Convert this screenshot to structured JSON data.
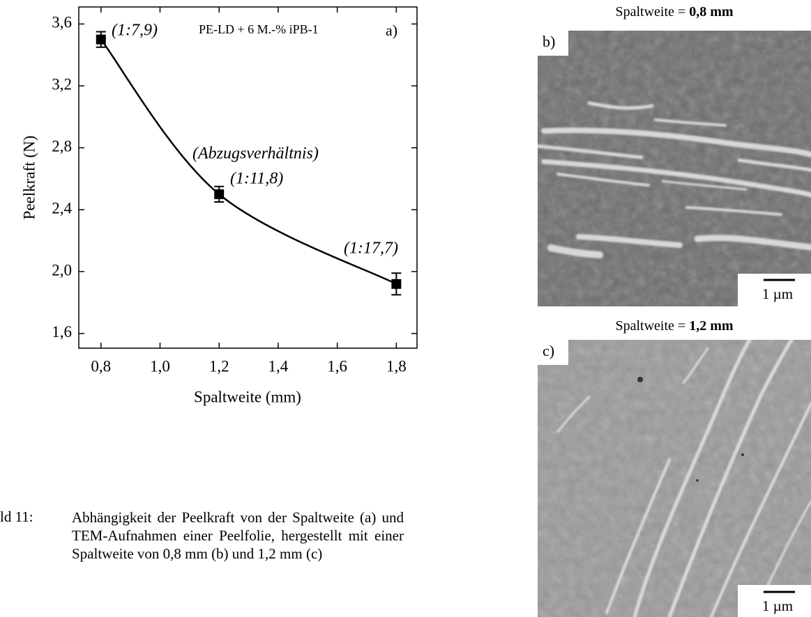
{
  "chart_data": {
    "type": "scatter",
    "x": [
      0.8,
      1.2,
      1.8
    ],
    "series": [
      {
        "color": "#000000",
        "values": [
          3.5,
          2.5,
          1.92
        ],
        "errors": [
          0.05,
          0.05,
          0.07
        ]
      }
    ],
    "xlim": [
      0.725,
      1.87
    ],
    "ylim": [
      1.505,
      3.71
    ],
    "xticks": [
      {
        "value": 0.8,
        "label": "0,8"
      },
      {
        "value": 1.0,
        "label": "1,0"
      },
      {
        "value": 1.2,
        "label": "1,2"
      },
      {
        "value": 1.4,
        "label": "1,4"
      },
      {
        "value": 1.6,
        "label": "1,6"
      },
      {
        "value": 1.8,
        "label": "1,8"
      }
    ],
    "yticks": [
      {
        "value": 1.6,
        "label": "1,6"
      },
      {
        "value": 2.0,
        "label": "2,0"
      },
      {
        "value": 2.4,
        "label": "2,4"
      },
      {
        "value": 2.8,
        "label": "2,8"
      },
      {
        "value": 3.2,
        "label": "3,2"
      },
      {
        "value": 3.6,
        "label": "3,6"
      }
    ],
    "xlabel": "Spaltweite (mm)",
    "ylabel": "Peelkraft (N)",
    "annotations": [
      "(1:7,9)",
      "PE-LD + 6 M.-% iPB-1",
      "a)",
      "(Abzugsverhältnis)",
      "(1:11,8)",
      "(1:17,7)"
    ]
  },
  "panels": [
    {
      "title": "Spaltweite =",
      "title_value": "0,8 mm",
      "label": "b)",
      "scale": "1 µm"
    },
    {
      "title": "Spaltweite =",
      "title_value": "1,2 mm",
      "label": "c)",
      "scale": "1 µm"
    }
  ],
  "caption": {
    "number": "ld 11:",
    "text": "Abhängigkeit der Peelkraft von der Spaltweite (a) und TEM-Aufnahmen einer Peelfolie, hergestellt mit einer Spaltweite von 0,8 mm (b) und 1,2 mm (c)"
  }
}
